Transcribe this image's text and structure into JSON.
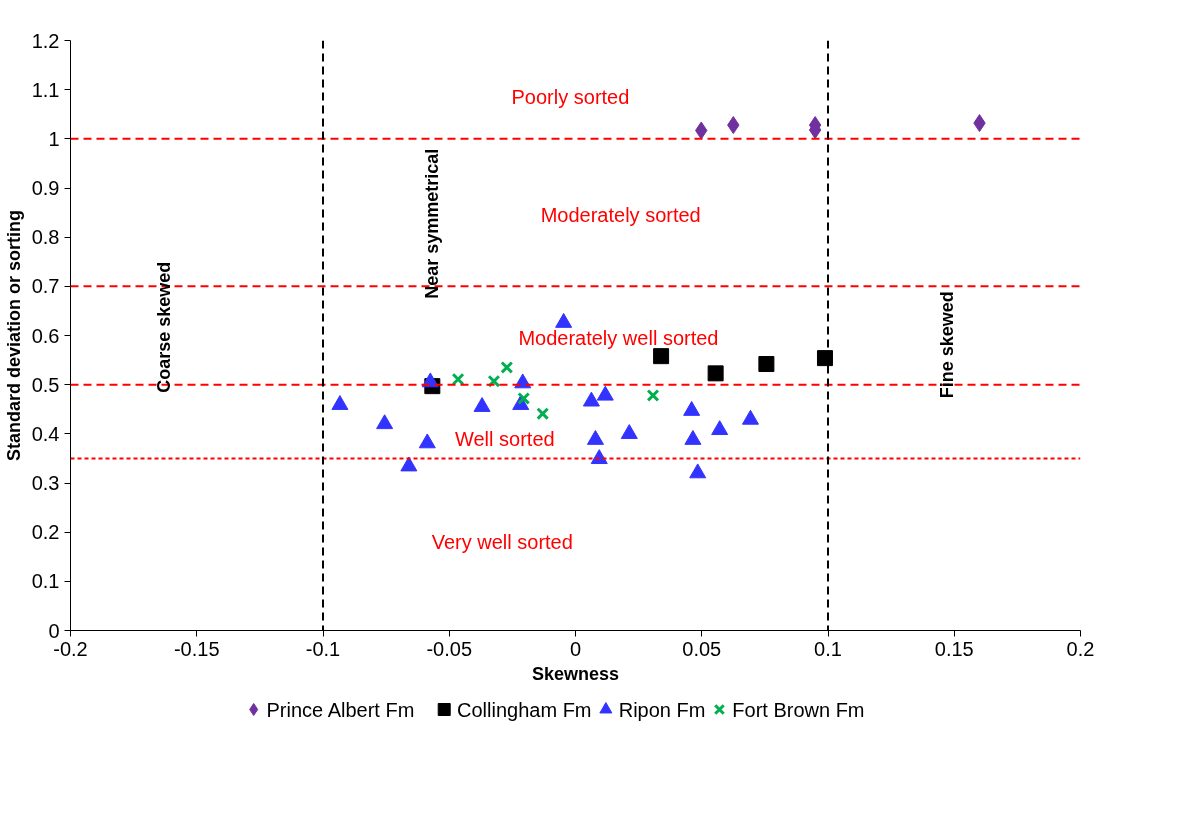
{
  "chart_data": {
    "type": "scatter",
    "xlabel": "Skewness",
    "ylabel": "Standard deviation or sorting",
    "xlim": [
      -0.2,
      0.2
    ],
    "ylim": [
      0,
      1.2
    ],
    "xticks": [
      -0.2,
      -0.15,
      -0.1,
      -0.05,
      0,
      0.05,
      0.1,
      0.15,
      0.2
    ],
    "yticks": [
      0,
      0.1,
      0.2,
      0.3,
      0.4,
      0.5,
      0.6,
      0.7,
      0.8,
      0.9,
      1,
      1.1,
      1.2
    ],
    "grid": false,
    "legend": "bottom",
    "series": [
      {
        "name": "Prince Albert Fm",
        "color": "#7030a0",
        "marker": "diamond",
        "x": [
          0.0498,
          0.0625,
          0.0949,
          0.0949,
          0.16
        ],
        "values": [
          1.017,
          1.028,
          1.028,
          1.018,
          1.032
        ]
      },
      {
        "name": "Collingham Fm",
        "color": "#000000",
        "marker": "square",
        "x": [
          -0.0567,
          0.0339,
          0.0555,
          0.0756,
          0.0988
        ],
        "values": [
          0.497,
          0.558,
          0.523,
          0.542,
          0.554
        ]
      },
      {
        "name": "Ripon Fm",
        "color": "#3333ff",
        "marker": "triangle",
        "x": [
          -0.0933,
          -0.0756,
          -0.0587,
          -0.066,
          -0.0575,
          -0.037,
          -0.0209,
          -0.0217,
          -0.0047,
          0.0063,
          0.0118,
          0.0079,
          0.0094,
          0.0213,
          0.046,
          0.0465,
          0.0484,
          0.0571,
          0.0693
        ],
        "values": [
          0.459,
          0.42,
          0.381,
          0.334,
          0.505,
          0.455,
          0.503,
          0.459,
          0.626,
          0.466,
          0.478,
          0.388,
          0.349,
          0.4,
          0.447,
          0.388,
          0.32,
          0.408,
          0.429
        ]
      },
      {
        "name": "Fort Brown Fm",
        "color": "#00b050",
        "marker": "cross",
        "x": [
          -0.0465,
          -0.0323,
          -0.0272,
          -0.0205,
          -0.013,
          0.0307
        ],
        "values": [
          0.511,
          0.507,
          0.535,
          0.472,
          0.441,
          0.478
        ]
      }
    ],
    "ref_lines": [
      {
        "axis": "y",
        "value": 1,
        "color": "#ff0000",
        "line_style": "dashed"
      },
      {
        "axis": "y",
        "value": 0.7,
        "color": "#ff0000",
        "line_style": "dashed"
      },
      {
        "axis": "y",
        "value": 0.5,
        "color": "#ff0000",
        "line_style": "dashed"
      },
      {
        "axis": "y",
        "value": 0.35,
        "color": "#ff0000",
        "line_style": "dotted"
      },
      {
        "axis": "x",
        "value": -0.1,
        "color": "#000000",
        "line_style": "dashed"
      },
      {
        "axis": "x",
        "value": 0.1,
        "color": "#000000",
        "line_style": "dashed"
      }
    ],
    "annotations": [
      "Poorly sorted",
      "Moderately  sorted",
      "Moderately well sorted",
      "Well sorted",
      "Very well sorted",
      "Coarse skewed",
      "Near symmetrical",
      "Fine skewed"
    ]
  }
}
